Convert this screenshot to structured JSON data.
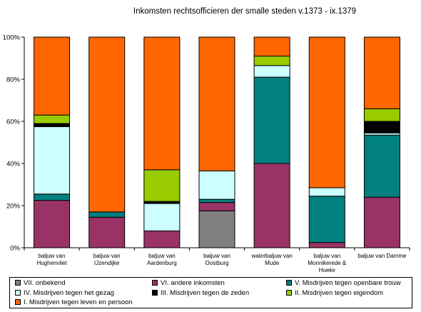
{
  "chart_data": {
    "type": "bar",
    "stacked": "percent",
    "title": "Inkomsten rechtsofficieren der smalle steden v.1373 - ix.1379",
    "xlabel": "",
    "ylabel": "",
    "ylim": [
      0,
      100
    ],
    "yticks": [
      "0%",
      "20%",
      "40%",
      "60%",
      "80%",
      "100%"
    ],
    "grid": false,
    "legend_position": "bottom",
    "categories": [
      [
        "baljuw van",
        "Hughenvliet"
      ],
      [
        "baljuw van",
        "IJzendijke"
      ],
      [
        "baljuw van",
        "Aardenburg"
      ],
      [
        "baljuw van",
        "Oostburg"
      ],
      [
        "waterbaljuw van",
        "Mude"
      ],
      [
        "baljuw van",
        "Monnikerede &",
        "Hoeke"
      ],
      [
        "baljuw van Damme"
      ]
    ],
    "series": [
      {
        "name": "VII. onbekend",
        "color": "#808080",
        "values": [
          0,
          0,
          0,
          17.5,
          0,
          0,
          0
        ]
      },
      {
        "name": "VI. andere inkomsten",
        "color": "#993366",
        "values": [
          22.5,
          14.5,
          8,
          4,
          40,
          2.5,
          24
        ]
      },
      {
        "name": "V. Misdrijven tegen openbare trouw",
        "color": "#008080",
        "values": [
          3,
          2.5,
          0,
          1.5,
          41,
          22,
          29.5
        ]
      },
      {
        "name": "IV. Misdrijven tegen het gezag",
        "color": "#CCFFFF",
        "values": [
          32,
          0,
          13,
          13.5,
          5.5,
          4,
          1
        ]
      },
      {
        "name": "III. Misdrijven tegen de zeden",
        "color": "#000000",
        "values": [
          1.5,
          0,
          1,
          0,
          0,
          0,
          5.5
        ]
      },
      {
        "name": "II. Misdrijven tegen eigendom",
        "color": "#99CC00",
        "values": [
          4,
          0,
          15,
          0,
          4.5,
          0,
          6
        ]
      },
      {
        "name": "I. Misdrijven tegen leven en persoon",
        "color": "#FF6600",
        "values": [
          37,
          83,
          63,
          63.5,
          9,
          71.5,
          34
        ]
      }
    ]
  }
}
